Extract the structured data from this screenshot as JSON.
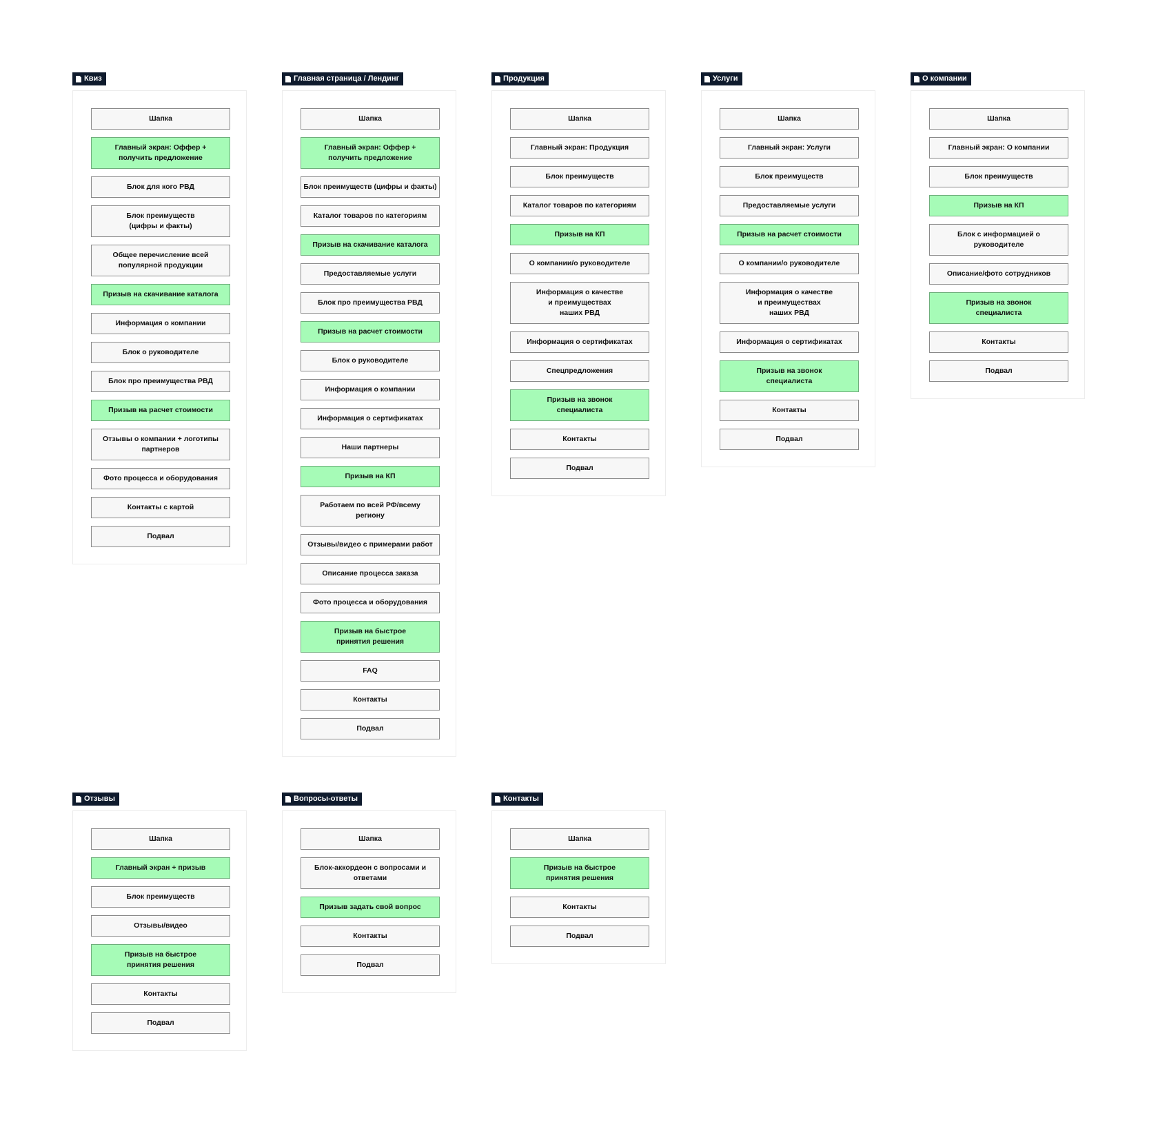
{
  "colors": {
    "label_bg": "#0f1b2d",
    "block_bg": "#f7f7f7",
    "cta_bg": "#a6fbb7"
  },
  "pages": [
    {
      "title": "Квиз",
      "blocks": [
        {
          "text": "Шапка",
          "cta": false
        },
        {
          "text": "Главный экран: Оффер +\nполучить предложение",
          "cta": true
        },
        {
          "text": "Блок для кого РВД",
          "cta": false
        },
        {
          "text": "Блок преимуществ\n(цифры и факты)",
          "cta": false
        },
        {
          "text": "Общее перечисление всей\nпопулярной продукции",
          "cta": false
        },
        {
          "text": "Призыв на скачивание каталога",
          "cta": true
        },
        {
          "text": "Информация о компании",
          "cta": false
        },
        {
          "text": "Блок о руководителе",
          "cta": false
        },
        {
          "text": "Блок про преимущества РВД",
          "cta": false
        },
        {
          "text": "Призыв на расчет стоимости",
          "cta": true
        },
        {
          "text": "Отзывы о компании + логотипы\nпартнеров",
          "cta": false
        },
        {
          "text": "Фото процесса и оборудования",
          "cta": false
        },
        {
          "text": "Контакты с картой",
          "cta": false
        },
        {
          "text": "Подвал",
          "cta": false
        }
      ]
    },
    {
      "title": "Главная страница / Лендинг",
      "blocks": [
        {
          "text": "Шапка",
          "cta": false
        },
        {
          "text": "Главный экран: Оффер +\nполучить предложение",
          "cta": true
        },
        {
          "text": "Блок преимуществ (цифры и факты)",
          "cta": false
        },
        {
          "text": "Каталог товаров по категориям",
          "cta": false
        },
        {
          "text": "Призыв на скачивание каталога",
          "cta": true
        },
        {
          "text": "Предоставляемые услуги",
          "cta": false
        },
        {
          "text": "Блок про преимущества РВД",
          "cta": false
        },
        {
          "text": "Призыв на расчет стоимости",
          "cta": true
        },
        {
          "text": "Блок о руководителе",
          "cta": false
        },
        {
          "text": "Информация о компании",
          "cta": false
        },
        {
          "text": "Информация о сертификатах",
          "cta": false
        },
        {
          "text": "Наши партнеры",
          "cta": false
        },
        {
          "text": "Призыв на КП",
          "cta": true
        },
        {
          "text": "Работаем по всей РФ/всему\nрегиону",
          "cta": false
        },
        {
          "text": "Отзывы/видео с примерами работ",
          "cta": false
        },
        {
          "text": "Описание процесса заказа",
          "cta": false
        },
        {
          "text": "Фото процесса и оборудования",
          "cta": false
        },
        {
          "text": "Призыв на быстрое\nпринятия решения",
          "cta": true
        },
        {
          "text": "FAQ",
          "cta": false
        },
        {
          "text": "Контакты",
          "cta": false
        },
        {
          "text": "Подвал",
          "cta": false
        }
      ]
    },
    {
      "title": "Продукция",
      "blocks": [
        {
          "text": "Шапка",
          "cta": false
        },
        {
          "text": "Главный экран: Продукция",
          "cta": false
        },
        {
          "text": "Блок преимуществ",
          "cta": false
        },
        {
          "text": "Каталог товаров по категориям",
          "cta": false
        },
        {
          "text": "Призыв на КП",
          "cta": true
        },
        {
          "text": "О компании/о руководителе",
          "cta": false
        },
        {
          "text": "Информация о качестве\nи преимуществах\nнаших РВД",
          "cta": false
        },
        {
          "text": "Информация о сертификатах",
          "cta": false
        },
        {
          "text": "Спецпредложения",
          "cta": false
        },
        {
          "text": "Призыв на звонок\nспециалиста",
          "cta": true
        },
        {
          "text": "Контакты",
          "cta": false
        },
        {
          "text": "Подвал",
          "cta": false
        }
      ]
    },
    {
      "title": "Услуги",
      "blocks": [
        {
          "text": "Шапка",
          "cta": false
        },
        {
          "text": "Главный экран: Услуги",
          "cta": false
        },
        {
          "text": "Блок преимуществ",
          "cta": false
        },
        {
          "text": "Предоставляемые услуги",
          "cta": false
        },
        {
          "text": "Призыв на расчет стоимости",
          "cta": true
        },
        {
          "text": "О компании/о руководителе",
          "cta": false
        },
        {
          "text": "Информация о качестве\nи преимуществах\nнаших РВД",
          "cta": false
        },
        {
          "text": "Информация о сертификатах",
          "cta": false
        },
        {
          "text": "Призыв на звонок\nспециалиста",
          "cta": true
        },
        {
          "text": "Контакты",
          "cta": false
        },
        {
          "text": "Подвал",
          "cta": false
        }
      ]
    },
    {
      "title": "О компании",
      "blocks": [
        {
          "text": "Шапка",
          "cta": false
        },
        {
          "text": "Главный экран: О компании",
          "cta": false
        },
        {
          "text": "Блок преимуществ",
          "cta": false
        },
        {
          "text": "Призыв на КП",
          "cta": true
        },
        {
          "text": "Блок с информацией о\nруководителе",
          "cta": false
        },
        {
          "text": "Описание/фото сотрудников",
          "cta": false
        },
        {
          "text": "Призыв на звонок\nспециалиста",
          "cta": true
        },
        {
          "text": "Контакты",
          "cta": false
        },
        {
          "text": "Подвал",
          "cta": false
        }
      ]
    },
    {
      "title": "Отзывы",
      "blocks": [
        {
          "text": "Шапка",
          "cta": false
        },
        {
          "text": "Главный экран + призыв",
          "cta": true
        },
        {
          "text": "Блок преимуществ",
          "cta": false
        },
        {
          "text": "Отзывы/видео",
          "cta": false
        },
        {
          "text": "Призыв на быстрое\nпринятия решения",
          "cta": true
        },
        {
          "text": "Контакты",
          "cta": false
        },
        {
          "text": "Подвал",
          "cta": false
        }
      ]
    },
    {
      "title": "Вопросы-ответы",
      "blocks": [
        {
          "text": "Шапка",
          "cta": false
        },
        {
          "text": "Блок-аккордеон с вопросами и\nответами",
          "cta": false
        },
        {
          "text": "Призыв задать свой вопрос",
          "cta": true
        },
        {
          "text": "Контакты",
          "cta": false
        },
        {
          "text": "Подвал",
          "cta": false
        }
      ]
    },
    {
      "title": "Контакты",
      "blocks": [
        {
          "text": "Шапка",
          "cta": false
        },
        {
          "text": "Призыв на быстрое\nпринятия решения",
          "cta": true
        },
        {
          "text": "Контакты",
          "cta": false
        },
        {
          "text": "Подвал",
          "cta": false
        }
      ]
    }
  ]
}
